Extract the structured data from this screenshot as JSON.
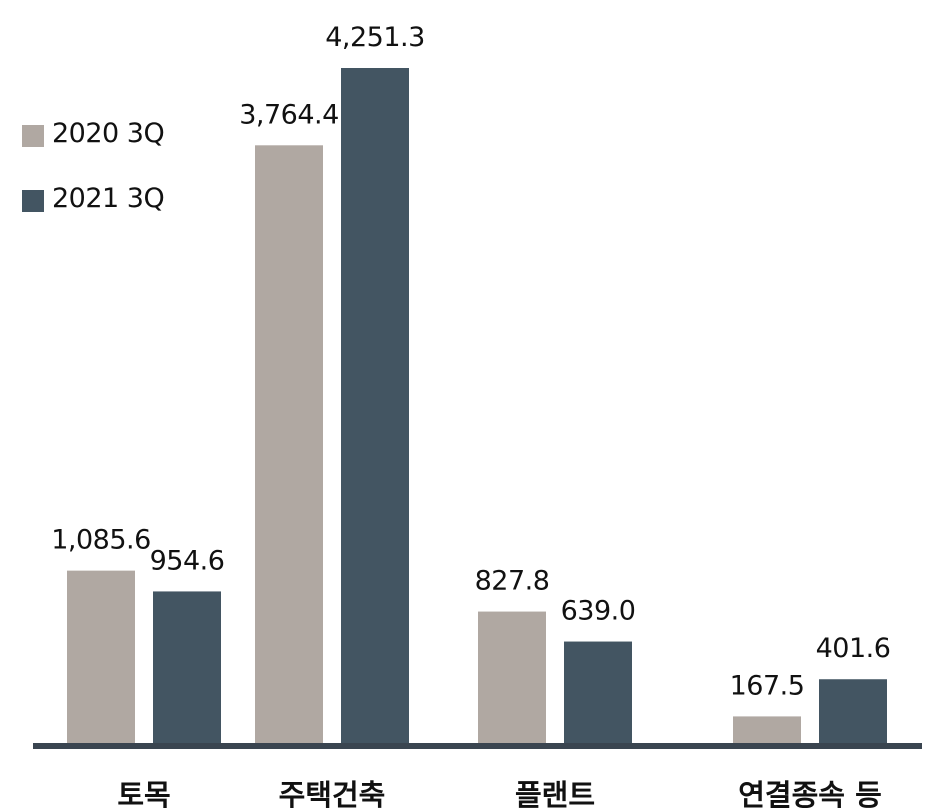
{
  "chart_data": {
    "type": "bar",
    "categories": [
      "토목",
      "주택건축",
      "플랜트",
      "연결종속 등"
    ],
    "series": [
      {
        "name": "2020 3Q",
        "values": [
          1085.6,
          3764.4,
          827.8,
          167.5
        ],
        "labels": [
          "1,085.6",
          "3,764.4",
          "827.8",
          "167.5"
        ]
      },
      {
        "name": "2021 3Q",
        "values": [
          954.6,
          4251.3,
          639.0,
          401.6
        ],
        "labels": [
          "954.6",
          "4,251.3",
          "639.0",
          "401.6"
        ]
      }
    ],
    "ylim": [
      0,
      4251.3
    ],
    "grid": false,
    "legend_position": "top-left",
    "colors": {
      "series_1": "#b0a8a2",
      "series_2": "#435562",
      "axis": "#3a4550"
    }
  }
}
